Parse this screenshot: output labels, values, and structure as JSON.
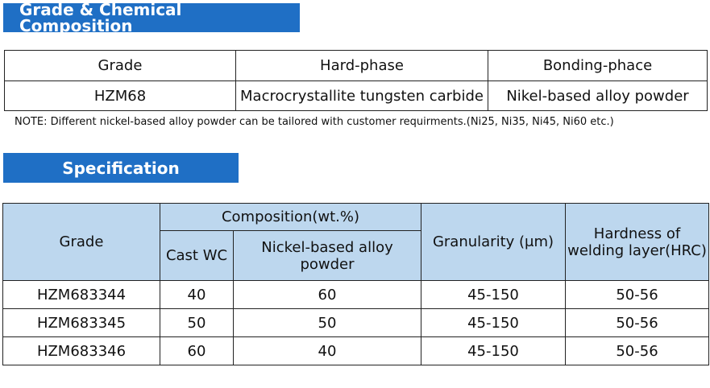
{
  "section1": {
    "title": "Grade & Chemical Composition",
    "table": {
      "headers": [
        "Grade",
        "Hard-phase",
        "Bonding-phace"
      ],
      "rows": [
        [
          "HZM68",
          "Macrocrystallite tungsten carbide",
          "Nikel-based alloy powder"
        ]
      ]
    },
    "note": "NOTE: Different nickel-based alloy powder can be tailored with customer requirments.(Ni25, Ni35, Ni45, Ni60 etc.)"
  },
  "section2": {
    "title": "Specification",
    "table": {
      "grade_header": "Grade",
      "composition_header": "Composition(wt.%)",
      "cast_wc_header": "Cast WC",
      "nickel_header": "Nickel-based alloy powder",
      "granularity_header": "Granularity (μm)",
      "hardness_header": "Hardness of welding layer(HRC)",
      "rows": [
        [
          "HZM683344",
          "40",
          "60",
          "45-150",
          "50-56"
        ],
        [
          "HZM683345",
          "50",
          "50",
          "45-150",
          "50-56"
        ],
        [
          "HZM683346",
          "60",
          "40",
          "45-150",
          "50-56"
        ]
      ]
    }
  },
  "colors": {
    "banner": "#1f6fc5",
    "header_fill": "#bdd7ee",
    "border": "#222222"
  }
}
